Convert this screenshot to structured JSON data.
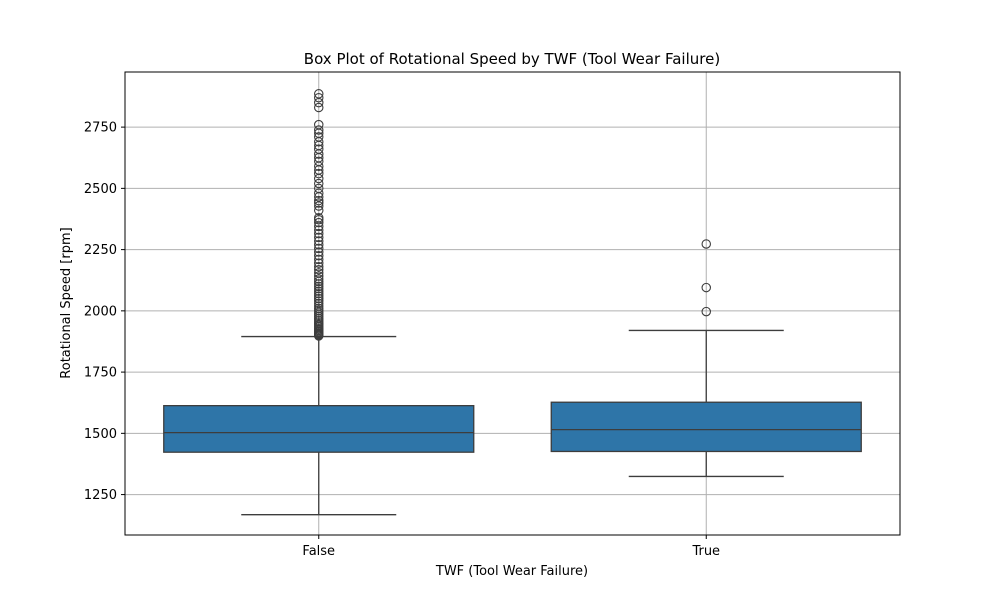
{
  "chart_data": {
    "type": "box",
    "title": "Box Plot of Rotational Speed by TWF (Tool Wear Failure)",
    "xlabel": "TWF (Tool Wear Failure)",
    "ylabel": "Rotational Speed [rpm]",
    "ylim": [
      1085,
      2975
    ],
    "yticks": [
      1250,
      1500,
      1750,
      2000,
      2250,
      2500,
      2750
    ],
    "grid": true,
    "colors": {
      "box": "#2e75a8",
      "line": "#3d3d3d",
      "grid": "#b0b0b0"
    },
    "categories": [
      "False",
      "True"
    ],
    "boxes": [
      {
        "category": "False",
        "whisker_low": 1168,
        "q1": 1423,
        "median": 1503,
        "q3": 1613,
        "whisker_high": 1895,
        "outliers": [
          1898,
          1902,
          1906,
          1910,
          1915,
          1920,
          1925,
          1930,
          1936,
          1942,
          1948,
          1955,
          1962,
          1970,
          1978,
          1986,
          1994,
          2002,
          2010,
          2020,
          2030,
          2040,
          2050,
          2060,
          2070,
          2080,
          2090,
          2100,
          2110,
          2120,
          2130,
          2142,
          2155,
          2168,
          2180,
          2195,
          2210,
          2225,
          2240,
          2255,
          2270,
          2285,
          2300,
          2315,
          2330,
          2345,
          2360,
          2372,
          2380,
          2410,
          2428,
          2440,
          2450,
          2465,
          2480,
          2500,
          2520,
          2540,
          2560,
          2575,
          2590,
          2610,
          2625,
          2640,
          2660,
          2675,
          2690,
          2710,
          2725,
          2738,
          2760,
          2830,
          2850,
          2870,
          2886
        ]
      },
      {
        "category": "True",
        "whisker_low": 1324,
        "q1": 1426,
        "median": 1515,
        "q3": 1627,
        "whisker_high": 1920,
        "outliers": [
          1997,
          2095,
          2273
        ]
      }
    ]
  }
}
